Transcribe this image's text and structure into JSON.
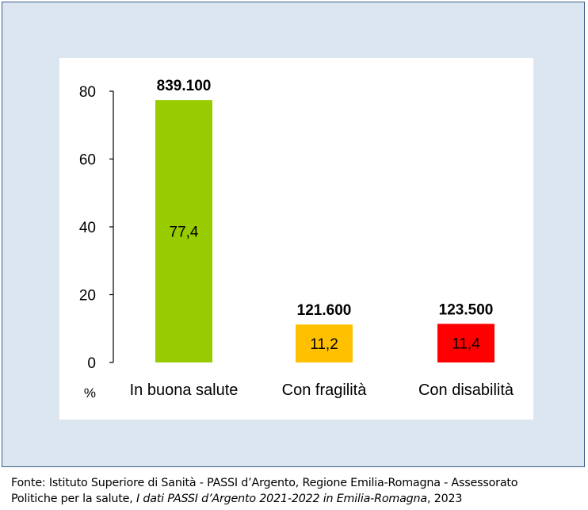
{
  "chart_data": {
    "type": "bar",
    "categories": [
      "In buona salute",
      "Con fragilità",
      "Con disabilità"
    ],
    "values": [
      77.4,
      11.2,
      11.4
    ],
    "value_labels": [
      "77,4",
      "11,2",
      "11,4"
    ],
    "totals": [
      "839.100",
      "121.600",
      "123.500"
    ],
    "colors": [
      "#99cc00",
      "#ffc000",
      "#ff0000"
    ],
    "y_unit": "%",
    "yticks": [
      0,
      20,
      40,
      60,
      80
    ],
    "ylim": [
      0,
      80
    ],
    "grid": false
  },
  "source": {
    "line1": "Fonte: Istituto Superiore di Sanità - PASSI d’Argento, Regione Emilia-Romagna - Assessorato",
    "line2_prefix": "Politiche per la salute, ",
    "line2_italic": "I dati PASSI d’Argento 2021-2022 in Emilia-Romagna",
    "line2_suffix": ", 2023"
  }
}
